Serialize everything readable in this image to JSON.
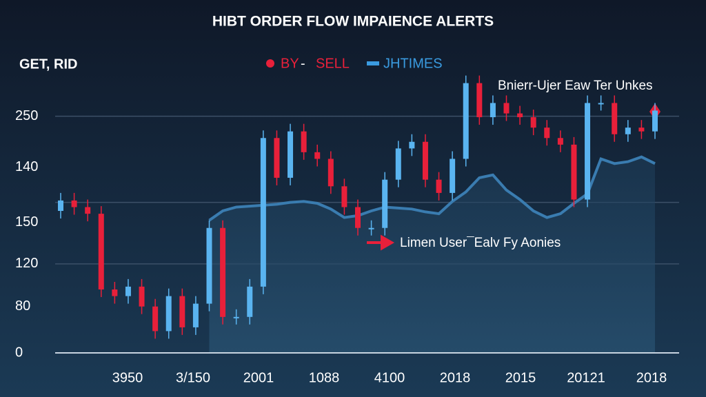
{
  "chart_data": {
    "type": "candlestick",
    "title": "HIBT ORDER FLOW IMPAIENCE ALERTS",
    "corner_label": "GET, RID",
    "legend_up": "BY",
    "legend_separator": "-",
    "legend_down": "SELL",
    "up_color": "#5ab4f0",
    "down_color": "#e8203a",
    "annotations": [
      "Bnierr-Ujer Eaw Ter Unkes",
      "Limen User¯Ealv Fy Aonies"
    ],
    "x_labels": [
      "3950",
      "3/150",
      "2001",
      "1088",
      "4100",
      "2018",
      "2015",
      "20121",
      "2018"
    ],
    "ylim": [
      0,
      300
    ],
    "yticks": [
      250,
      {
        "value": 196,
        "label": "140"
      },
      {
        "value": 138,
        "label": "150"
      },
      {
        "value": 94,
        "label": "120"
      },
      {
        "value": 49,
        "label": "80"
      },
      0
    ],
    "grid_ticks": [
      0,
      3
    ],
    "reference_line": 159,
    "open": [
      150,
      161,
      154,
      147,
      67,
      60,
      70,
      49,
      23,
      60,
      27,
      52,
      132,
      38,
      38,
      70,
      227,
      185,
      234,
      212,
      205,
      176,
      154,
      132,
      132,
      183,
      216,
      223,
      183,
      169,
      205,
      285,
      249,
      264,
      253,
      249,
      238,
      227,
      220,
      162,
      264,
      264,
      231,
      238,
      234
    ],
    "close": [
      161,
      154,
      147,
      67,
      60,
      70,
      49,
      23,
      60,
      27,
      52,
      132,
      38,
      38,
      70,
      227,
      185,
      234,
      212,
      205,
      176,
      154,
      132,
      132,
      183,
      216,
      223,
      183,
      169,
      205,
      285,
      249,
      264,
      253,
      249,
      238,
      227,
      220,
      162,
      264,
      264,
      231,
      238,
      234,
      256
    ],
    "high": [
      169,
      169,
      162,
      155,
      75,
      78,
      78,
      57,
      68,
      68,
      60,
      140,
      140,
      46,
      78,
      235,
      235,
      242,
      242,
      220,
      213,
      184,
      162,
      140,
      191,
      224,
      231,
      231,
      191,
      213,
      293,
      293,
      272,
      272,
      261,
      257,
      246,
      235,
      228,
      272,
      272,
      272,
      246,
      246,
      264
    ],
    "low": [
      142,
      146,
      139,
      59,
      52,
      52,
      41,
      15,
      15,
      19,
      19,
      44,
      30,
      30,
      30,
      62,
      177,
      177,
      204,
      197,
      168,
      146,
      124,
      124,
      124,
      175,
      208,
      175,
      161,
      161,
      197,
      241,
      241,
      245,
      241,
      230,
      219,
      212,
      154,
      154,
      256,
      223,
      223,
      226,
      226
    ],
    "line": {
      "name": "JHTIMES",
      "color": "#3a7cb0",
      "values": [
        null,
        null,
        null,
        null,
        null,
        null,
        null,
        null,
        null,
        null,
        null,
        140,
        150,
        154,
        155,
        156,
        157,
        159,
        160,
        158,
        152,
        143,
        145,
        150,
        154,
        153,
        152,
        149,
        147,
        160,
        170,
        185,
        188,
        172,
        162,
        150,
        143,
        147,
        158,
        168,
        205,
        200,
        202,
        207,
        200
      ]
    }
  }
}
